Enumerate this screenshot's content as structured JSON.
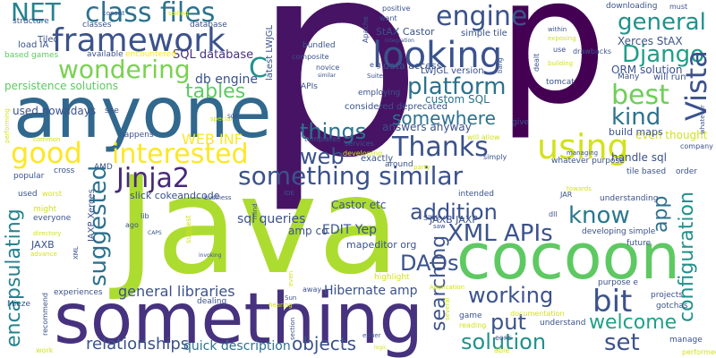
{
  "words": [
    {
      "text": "p",
      "color": "#471365"
    },
    {
      "text": "p",
      "color": "#440154"
    },
    {
      "text": "Java",
      "color": "#addc30"
    },
    {
      "text": "something",
      "color": "#46327e"
    },
    {
      "text": "anyone",
      "color": "#31688e"
    },
    {
      "text": "cocoon",
      "color": "#5ec962"
    },
    {
      "text": "framework",
      "color": "#3b528b"
    },
    {
      "text": "class files",
      "color": "#2c728e"
    },
    {
      "text": "NET",
      "color": "#26828e"
    },
    {
      "text": "engine",
      "color": "#3b528b"
    },
    {
      "text": "general",
      "color": "#21918c"
    },
    {
      "text": "Django",
      "color": "#1f9e89"
    },
    {
      "text": "Vista",
      "color": "#3b528b"
    },
    {
      "text": "best",
      "color": "#6ece58"
    },
    {
      "text": "kind",
      "color": "#2c728e"
    },
    {
      "text": "looking",
      "color": "#3b528b"
    },
    {
      "text": "platform",
      "color": "#2c728e"
    },
    {
      "text": "wondering",
      "color": "#7ad151"
    },
    {
      "text": "tables",
      "color": "#5ec962"
    },
    {
      "text": "good",
      "color": "#fde725"
    },
    {
      "text": "interested",
      "color": "#fde725"
    },
    {
      "text": "Thanks",
      "color": "#3b528b"
    },
    {
      "text": "using",
      "color": "#d2e21b"
    },
    {
      "text": "things",
      "color": "#2c728e"
    },
    {
      "text": "somewhere",
      "color": "#2c728e"
    },
    {
      "text": "web",
      "color": "#3b528b"
    },
    {
      "text": "Jinja2",
      "color": "#482878"
    },
    {
      "text": "something similar",
      "color": "#3b528b"
    },
    {
      "text": "addition",
      "color": "#3b528b"
    },
    {
      "text": "know",
      "color": "#2a788e"
    },
    {
      "text": "XML APIs",
      "color": "#3b528b"
    },
    {
      "text": "suggested",
      "color": "#2c728e"
    },
    {
      "text": "encapsulating",
      "color": "#26828e"
    },
    {
      "text": "searching",
      "color": "#3b528b"
    },
    {
      "text": "configuration",
      "color": "#21918c"
    },
    {
      "text": "app",
      "color": "#2c728e"
    },
    {
      "text": "DAOs",
      "color": "#3b528b"
    },
    {
      "text": "working",
      "color": "#3b528b"
    },
    {
      "text": "bit",
      "color": "#3b528b"
    },
    {
      "text": "welcome",
      "color": "#1fa188"
    },
    {
      "text": "put",
      "color": "#3b528b"
    },
    {
      "text": "solution",
      "color": "#21918c"
    },
    {
      "text": "set",
      "color": "#3b528b"
    },
    {
      "text": "relationships",
      "color": "#3b528b"
    },
    {
      "text": "objects",
      "color": "#3b528b"
    },
    {
      "text": "C",
      "color": "#21918c"
    },
    {
      "text": "WEB INF",
      "color": "#fde725"
    },
    {
      "text": "SQL database",
      "color": "#46327e"
    },
    {
      "text": "db engine",
      "color": "#3b528b"
    },
    {
      "text": "general libraries",
      "color": "#3b528b"
    },
    {
      "text": "Hibernate amp",
      "color": "#3b528b"
    },
    {
      "text": "quick description",
      "color": "#2c728e"
    },
    {
      "text": "sql queries",
      "color": "#3b528b"
    },
    {
      "text": "used nowadays",
      "color": "#3b528b"
    },
    {
      "text": "persistence solutions",
      "color": "#5ec962"
    },
    {
      "text": "ORM solution",
      "color": "#3b528b"
    },
    {
      "text": "Xerces StAX",
      "color": "#3b528b"
    },
    {
      "text": "handle sql",
      "color": "#3b528b"
    },
    {
      "text": "even thought",
      "color": "#d2e21b"
    },
    {
      "text": "custom SQL",
      "color": "#2c728e"
    },
    {
      "text": "answers anyway",
      "color": "#3b528b"
    },
    {
      "text": "EDIT Yep",
      "color": "#3b528b"
    },
    {
      "text": "mapeditor org",
      "color": "#3b528b"
    },
    {
      "text": "Castor etc",
      "color": "#3b528b"
    },
    {
      "text": "JAXB JAXP",
      "color": "#3b528b"
    },
    {
      "text": "slick cokeandcode",
      "color": "#3b528b"
    },
    {
      "text": "amp co",
      "color": "#3b528b"
    },
    {
      "text": "build maps",
      "color": "#3b528b"
    },
    {
      "text": "JAXP Xerces",
      "color": "#3b528b"
    },
    {
      "text": "JAXB",
      "color": "#3b528b"
    },
    {
      "text": "StAX Castor",
      "color": "#3b528b"
    },
    {
      "text": "data access",
      "color": "#3b528b"
    },
    {
      "text": "simple tile",
      "color": "#3b528b"
    },
    {
      "text": "considered deprecated",
      "color": "#3b528b"
    },
    {
      "text": "LWJGL version",
      "color": "#3b528b"
    },
    {
      "text": "latest LWJGL",
      "color": "#3b528b"
    },
    {
      "text": "Tiled",
      "color": "#3b528b"
    },
    {
      "text": "load IA",
      "color": "#3b528b"
    },
    {
      "text": "structure",
      "color": "#3b528b"
    },
    {
      "text": "classes",
      "color": "#3b528b"
    },
    {
      "text": "available",
      "color": "#3b528b"
    },
    {
      "text": "based games",
      "color": "#5ec962"
    },
    {
      "text": "encountered",
      "color": "#fde725"
    },
    {
      "text": "database",
      "color": "#3b528b"
    },
    {
      "text": "bundled",
      "color": "#3b528b"
    },
    {
      "text": "composite",
      "color": "#3b528b"
    },
    {
      "text": "novice",
      "color": "#3b528b"
    },
    {
      "text": "APIs",
      "color": "#3b528b"
    },
    {
      "text": "employing",
      "color": "#3b528b"
    },
    {
      "text": "Many",
      "color": "#3b528b"
    },
    {
      "text": "will run",
      "color": "#3b528b"
    },
    {
      "text": "tomcat",
      "color": "#3b528b"
    },
    {
      "text": "company",
      "color": "#3b528b"
    },
    {
      "text": "whatever purpose",
      "color": "#3b528b"
    },
    {
      "text": "tile based",
      "color": "#3b528b"
    },
    {
      "text": "order",
      "color": "#3b528b"
    },
    {
      "text": "understanding",
      "color": "#3b528b"
    },
    {
      "text": "developing simple",
      "color": "#3b528b"
    },
    {
      "text": "future",
      "color": "#3b528b"
    },
    {
      "text": "projects",
      "color": "#3b528b"
    },
    {
      "text": "gotchas",
      "color": "#3b528b"
    },
    {
      "text": "purpose e",
      "color": "#3b528b"
    },
    {
      "text": "manage",
      "color": "#3b528b"
    },
    {
      "text": "performed",
      "color": "#d2e21b"
    },
    {
      "text": "documentation",
      "color": "#d2e21b"
    },
    {
      "text": "understand",
      "color": "#3b528b"
    },
    {
      "text": "game",
      "color": "#3b528b"
    },
    {
      "text": "reading",
      "color": "#d2e21b"
    },
    {
      "text": "eons",
      "color": "#3b528b"
    },
    {
      "text": "able",
      "color": "#d2e21b"
    },
    {
      "text": "services",
      "color": "#3b528b"
    },
    {
      "text": "templates",
      "color": "#3b528b"
    },
    {
      "text": "developing",
      "color": "#d2e21b"
    },
    {
      "text": "exactly",
      "color": "#3b528b"
    },
    {
      "text": "around",
      "color": "#3b528b"
    },
    {
      "text": "party",
      "color": "#d2e21b"
    },
    {
      "text": "simply",
      "color": "#3b528b"
    },
    {
      "text": "will allow",
      "color": "#d2e21b"
    },
    {
      "text": "give",
      "color": "#3b528b"
    },
    {
      "text": "downloading",
      "color": "#3b528b"
    },
    {
      "text": "must",
      "color": "#3b528b"
    },
    {
      "text": "drawbacks",
      "color": "#3b528b"
    },
    {
      "text": "exposing",
      "color": "#d2e21b"
    },
    {
      "text": "building",
      "color": "#d2e21b"
    },
    {
      "text": "within",
      "color": "#3b528b"
    },
    {
      "text": "use",
      "color": "#3b528b"
    },
    {
      "text": "positive",
      "color": "#3b528b"
    },
    {
      "text": "want",
      "color": "#3b528b"
    },
    {
      "text": "Apache",
      "color": "#3b528b"
    },
    {
      "text": "integration",
      "color": "#3b528b"
    },
    {
      "text": "Suite",
      "color": "#3b528b"
    },
    {
      "text": "similar",
      "color": "#3b528b"
    },
    {
      "text": "consist",
      "color": "#3b528b"
    },
    {
      "text": "sailing",
      "color": "#d2e21b"
    },
    {
      "text": "see",
      "color": "#3b528b"
    },
    {
      "text": "happens",
      "color": "#3b528b"
    },
    {
      "text": "common",
      "color": "#d2e21b"
    },
    {
      "text": "special",
      "color": "#d2e21b"
    },
    {
      "text": "SOA",
      "color": "#3b528b"
    },
    {
      "text": "popular",
      "color": "#3b528b"
    },
    {
      "text": "cross",
      "color": "#3b528b"
    },
    {
      "text": "AMD",
      "color": "#3b528b"
    },
    {
      "text": "used",
      "color": "#3b528b"
    },
    {
      "text": "worst",
      "color": "#d2e21b"
    },
    {
      "text": "might",
      "color": "#d2e21b"
    },
    {
      "text": "everyone",
      "color": "#3b528b"
    },
    {
      "text": "directory",
      "color": "#d2e21b"
    },
    {
      "text": "advance",
      "color": "#d2e21b"
    },
    {
      "text": "XML",
      "color": "#3b528b"
    },
    {
      "text": "lib",
      "color": "#3b528b"
    },
    {
      "text": "CAPS",
      "color": "#3b528b"
    },
    {
      "text": "ago",
      "color": "#3b528b"
    },
    {
      "text": "suggest",
      "color": "#d2e21b"
    },
    {
      "text": "invoking",
      "color": "#3b528b"
    },
    {
      "text": "business",
      "color": "#3b528b"
    },
    {
      "text": "mind",
      "color": "#3b528b"
    },
    {
      "text": "IDE",
      "color": "#3b528b"
    },
    {
      "text": "saw",
      "color": "#3b528b"
    },
    {
      "text": "Slick",
      "color": "#3b528b"
    },
    {
      "text": "intended",
      "color": "#3b528b"
    },
    {
      "text": "dll",
      "color": "#3b528b"
    },
    {
      "text": "JAR",
      "color": "#3b528b"
    },
    {
      "text": "towards",
      "color": "#d2e21b"
    },
    {
      "text": "dealing",
      "color": "#3b528b"
    },
    {
      "text": "hearing",
      "color": "#d2e21b"
    },
    {
      "text": "even",
      "color": "#d2e21b"
    },
    {
      "text": "away",
      "color": "#3b528b"
    },
    {
      "text": "Sun",
      "color": "#3b528b"
    },
    {
      "text": "section",
      "color": "#3b528b"
    },
    {
      "text": "highlight",
      "color": "#d2e21b"
    },
    {
      "text": "Application",
      "color": "#d2e21b"
    },
    {
      "text": "either",
      "color": "#3b528b"
    },
    {
      "text": "logic",
      "color": "#d2e21b"
    },
    {
      "text": "several",
      "color": "#d2e21b"
    },
    {
      "text": "experiences",
      "color": "#3b528b"
    },
    {
      "text": "Mieze",
      "color": "#3b528b"
    },
    {
      "text": "recommend",
      "color": "#3b528b"
    },
    {
      "text": "work",
      "color": "#d2e21b"
    },
    {
      "text": "performing",
      "color": "#d2e21b"
    },
    {
      "text": "whatever",
      "color": "#3b528b"
    },
    {
      "text": "managing",
      "color": "#3b528b"
    },
    {
      "text": "dealt",
      "color": "#3b528b"
    },
    {
      "text": "bang",
      "color": "#3b528b"
    },
    {
      "text": "e g",
      "color": "#3b528b"
    }
  ]
}
